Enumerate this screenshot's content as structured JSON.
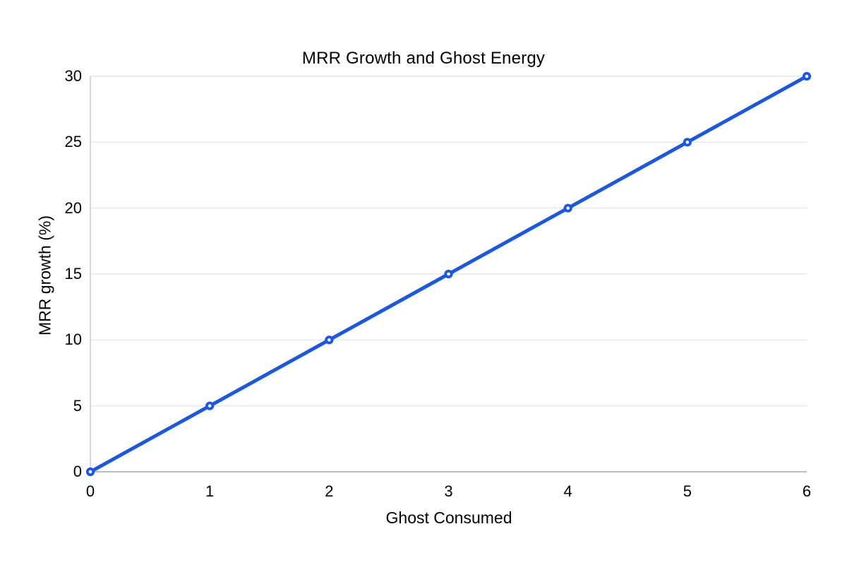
{
  "chart_data": {
    "type": "line",
    "title": "MRR Growth and Ghost Energy",
    "xlabel": "Ghost Consumed",
    "ylabel": "MRR growth (%)",
    "x": [
      0,
      1,
      2,
      3,
      4,
      5,
      6
    ],
    "values": [
      0,
      5,
      10,
      15,
      20,
      25,
      30
    ],
    "xticks": [
      0,
      1,
      2,
      3,
      4,
      5,
      6
    ],
    "yticks": [
      0,
      5,
      10,
      15,
      20,
      25,
      30
    ],
    "xlim": [
      0,
      6
    ],
    "ylim": [
      0,
      30
    ],
    "grid": "horizontal",
    "legend_position": "none",
    "marker": "open-circle",
    "colors": {
      "line": "#1a56e8",
      "marker_fill": "#ffffff",
      "gridline": "#e7e7e7",
      "axis_line": "#bdbdbd",
      "text": "#000000",
      "background": "#ffffff"
    }
  }
}
